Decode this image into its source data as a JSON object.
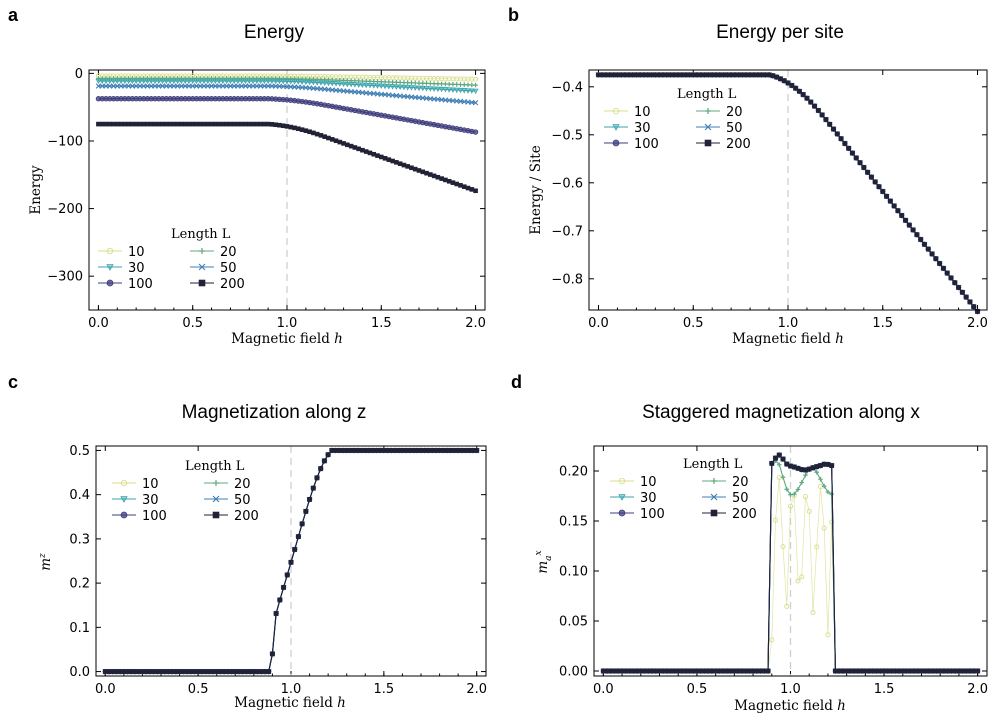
{
  "figure": {
    "legend_title": "Length L",
    "series_styles": [
      {
        "name": "10",
        "color": "#d8dd8a",
        "marker": "circle-open"
      },
      {
        "name": "20",
        "color": "#5fa882",
        "marker": "plus"
      },
      {
        "name": "30",
        "color": "#3aa3ad",
        "marker": "triangle-down"
      },
      {
        "name": "50",
        "color": "#3f7fb5",
        "marker": "x"
      },
      {
        "name": "100",
        "color": "#3d3c7d",
        "marker": "circle"
      },
      {
        "name": "200",
        "color": "#222236",
        "marker": "square"
      }
    ],
    "critical_line_color": "#cfcfcf"
  },
  "chart_data": [
    {
      "panel": "a",
      "type": "line",
      "title": "Energy",
      "xlabel": "Magnetic field h",
      "ylabel": "Energy",
      "xlim": [
        -0.05,
        2.05
      ],
      "ylim": [
        -350,
        5
      ],
      "xticks": [
        0.0,
        0.5,
        1.0,
        1.5,
        2.0
      ],
      "xtick_labels": [
        "0.0",
        "0.5",
        "1.0",
        "1.5",
        "2.0"
      ],
      "yticks": [
        0,
        -100,
        -200,
        -300
      ],
      "ytick_labels": [
        "0",
        "−100",
        "−200",
        "−300"
      ],
      "vline": 1.0,
      "legend_loc": "lower-left",
      "quantity": "energy",
      "series": [
        {
          "name": "10",
          "L": 10
        },
        {
          "name": "20",
          "L": 20
        },
        {
          "name": "30",
          "L": 30
        },
        {
          "name": "50",
          "L": 50
        },
        {
          "name": "100",
          "L": 100
        },
        {
          "name": "200",
          "L": 200
        }
      ]
    },
    {
      "panel": "b",
      "type": "line",
      "title": "Energy per site",
      "xlabel": "Magnetic field h",
      "ylabel": "Energy / Site",
      "xlim": [
        -0.05,
        2.05
      ],
      "ylim": [
        -0.865,
        -0.365
      ],
      "xticks": [
        0.0,
        0.5,
        1.0,
        1.5,
        2.0
      ],
      "xtick_labels": [
        "0.0",
        "0.5",
        "1.0",
        "1.5",
        "2.0"
      ],
      "yticks": [
        -0.4,
        -0.5,
        -0.6,
        -0.7,
        -0.8
      ],
      "ytick_labels": [
        "−0.4",
        "−0.5",
        "−0.6",
        "−0.7",
        "−0.8"
      ],
      "vline": 1.0,
      "legend_loc": "upper-left",
      "quantity": "energy_per_site",
      "series": [
        {
          "name": "10",
          "L": 10
        },
        {
          "name": "20",
          "L": 20
        },
        {
          "name": "30",
          "L": 30
        },
        {
          "name": "50",
          "L": 50
        },
        {
          "name": "100",
          "L": 100
        },
        {
          "name": "200",
          "L": 200
        }
      ]
    },
    {
      "panel": "c",
      "type": "line",
      "title": "Magnetization along z",
      "xlabel": "Magnetic field h",
      "ylabel": "m^z",
      "xlim": [
        -0.05,
        2.05
      ],
      "ylim": [
        -0.01,
        0.51
      ],
      "xticks": [
        0.0,
        0.5,
        1.0,
        1.5,
        2.0
      ],
      "xtick_labels": [
        "0.0",
        "0.5",
        "1.0",
        "1.5",
        "2.0"
      ],
      "yticks": [
        0.0,
        0.1,
        0.2,
        0.3,
        0.4,
        0.5
      ],
      "ytick_labels": [
        "0.0",
        "0.1",
        "0.2",
        "0.3",
        "0.4",
        "0.5"
      ],
      "vline": 1.0,
      "legend_loc": "upper-left",
      "quantity": "mz",
      "series": [
        {
          "name": "10",
          "L": 10
        },
        {
          "name": "20",
          "L": 20
        },
        {
          "name": "30",
          "L": 30
        },
        {
          "name": "50",
          "L": 50
        },
        {
          "name": "100",
          "L": 100
        },
        {
          "name": "200",
          "L": 200
        }
      ]
    },
    {
      "panel": "d",
      "type": "line",
      "title": "Staggered magnetization along x",
      "xlabel": "Magnetic field h",
      "ylabel": "m_a^x",
      "xlim": [
        -0.05,
        2.05
      ],
      "ylim": [
        -0.005,
        0.225
      ],
      "xticks": [
        0.0,
        0.5,
        1.0,
        1.5,
        2.0
      ],
      "xtick_labels": [
        "0.0",
        "0.5",
        "1.0",
        "1.5",
        "2.0"
      ],
      "yticks": [
        0.0,
        0.05,
        0.1,
        0.15,
        0.2
      ],
      "ytick_labels": [
        "0.00",
        "0.05",
        "0.10",
        "0.15",
        "0.20"
      ],
      "vline": 1.0,
      "legend_loc": "upper-left",
      "quantity": "mx_staggered",
      "series": [
        {
          "name": "10",
          "L": 10
        },
        {
          "name": "20",
          "L": 20
        },
        {
          "name": "30",
          "L": 30
        },
        {
          "name": "50",
          "L": 50
        },
        {
          "name": "100",
          "L": 100
        },
        {
          "name": "200",
          "L": 200
        }
      ]
    }
  ],
  "curve_model": {
    "h_grid_step": 0.02,
    "h_min": 0.0,
    "h_max": 2.0,
    "energy_per_site_low_field": -0.375,
    "energy_per_site_at_h2": -0.85,
    "mz_onset_h": 0.9,
    "mz_saturation_h": 1.22,
    "mz_saturation": 0.5,
    "mx_plateau": 0.205,
    "mx_peak": 0.216,
    "mx_range": [
      0.9,
      1.22
    ]
  }
}
